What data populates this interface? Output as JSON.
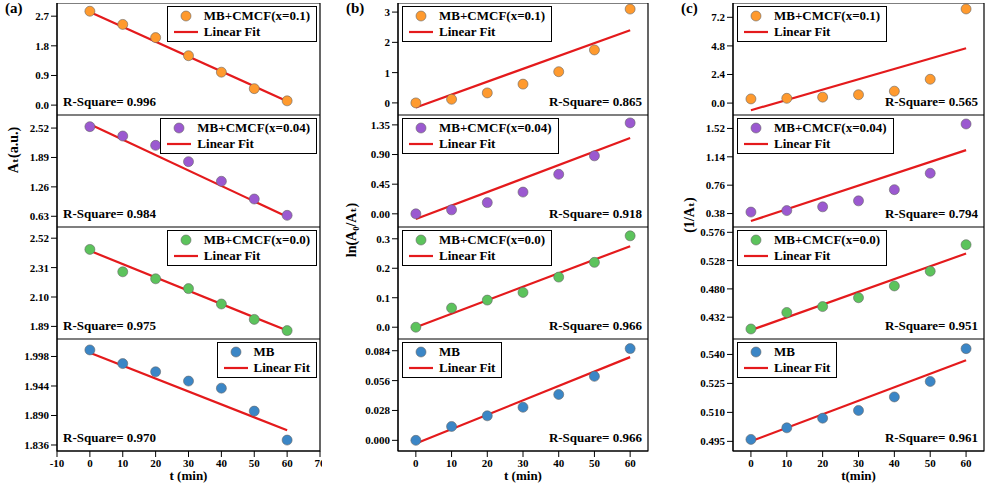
{
  "chart_data": [
    {
      "type": "scatter",
      "title": "(a)",
      "tick_labels": "y",
      "legend": "upper right",
      "xlim": [
        -10,
        70
      ],
      "ylim": [
        -0.3,
        3.1
      ],
      "yticks": [
        {
          "value": 0,
          "label": "0.0"
        },
        0.9,
        1.8,
        2.7
      ],
      "annotations": [
        "R-Square= 0.996"
      ],
      "series": [
        {
          "name": "MB+CMCF(x=0.1)",
          "type": "scatter",
          "marker": "circle",
          "color": "#ff9a2e",
          "x": [
            0,
            10,
            20,
            30,
            40,
            50,
            60
          ],
          "values": [
            2.85,
            2.45,
            2.05,
            1.5,
            1.0,
            0.5,
            0.13
          ]
        },
        {
          "name": "Linear Fit",
          "type": "line",
          "color": "#e41a1c",
          "x": [
            0,
            60
          ],
          "values": [
            2.83,
            0.12
          ]
        }
      ]
    },
    {
      "type": "scatter",
      "y_label": "Aₜ(a.u.)",
      "tick_labels": "y",
      "legend": "upper right",
      "xlim": [
        -10,
        70
      ],
      "ylim": [
        0.4,
        2.8
      ],
      "yticks": [
        0.63,
        1.26,
        1.89,
        2.52
      ],
      "annotations": [
        "R-Square= 0.984"
      ],
      "series": [
        {
          "name": "MB+CMCF(x=0.04)",
          "type": "scatter",
          "marker": "circle",
          "color": "#9b59d0",
          "x": [
            0,
            10,
            20,
            30,
            40,
            50,
            60
          ],
          "values": [
            2.55,
            2.35,
            2.15,
            1.8,
            1.38,
            1.0,
            0.65
          ]
        },
        {
          "name": "Linear Fit",
          "type": "line",
          "color": "#e41a1c",
          "x": [
            0,
            60
          ],
          "values": [
            2.6,
            0.62
          ]
        }
      ]
    },
    {
      "type": "scatter",
      "tick_labels": "y",
      "legend": "upper right",
      "xlim": [
        -10,
        70
      ],
      "ylim": [
        1.8,
        2.6
      ],
      "yticks": [
        1.89,
        {
          "value": 2.1,
          "label": "2.10"
        },
        2.31,
        2.52
      ],
      "annotations": [
        "R-Square= 0.975"
      ],
      "series": [
        {
          "name": "MB+CMCF(x=0.0)",
          "type": "scatter",
          "marker": "circle",
          "color": "#5cc35c",
          "x": [
            0,
            10,
            20,
            30,
            40,
            50,
            60
          ],
          "values": [
            2.44,
            2.28,
            2.23,
            2.16,
            2.05,
            1.94,
            1.86
          ]
        },
        {
          "name": "Linear Fit",
          "type": "line",
          "color": "#e41a1c",
          "x": [
            0,
            60
          ],
          "values": [
            2.43,
            1.86
          ]
        }
      ]
    },
    {
      "type": "scatter",
      "x_label": "t (min)",
      "legend": "upper right",
      "xlim": [
        -10,
        70
      ],
      "xticks": [
        -10,
        0,
        10,
        20,
        30,
        40,
        50,
        60,
        70
      ],
      "ylim": [
        1.825,
        2.03
      ],
      "yticks": [
        1.836,
        {
          "value": 1.89,
          "label": "1.890"
        },
        1.944,
        1.998
      ],
      "annotations": [
        "R-Square= 0.970"
      ],
      "series": [
        {
          "name": "MB",
          "type": "scatter",
          "marker": "circle",
          "color": "#3b86c6",
          "x": [
            0,
            10,
            20,
            30,
            40,
            50,
            60
          ],
          "values": [
            2.01,
            1.985,
            1.97,
            1.953,
            1.94,
            1.898,
            1.845
          ]
        },
        {
          "name": "Linear Fit",
          "type": "line",
          "color": "#e41a1c",
          "x": [
            0,
            60
          ],
          "values": [
            2.005,
            1.863
          ]
        }
      ]
    },
    {
      "type": "scatter",
      "title": "(b)",
      "tick_labels": "y",
      "legend": "upper left",
      "xlim": [
        -5,
        65
      ],
      "ylim": [
        -0.4,
        3.3
      ],
      "yticks": [
        0,
        1,
        2,
        3
      ],
      "annotations": [
        "R-Square= 0.865"
      ],
      "series": [
        {
          "name": "MB+CMCF(x=0.1)",
          "type": "scatter",
          "marker": "circle",
          "color": "#ff9a2e",
          "x": [
            0,
            10,
            20,
            30,
            40,
            50,
            60
          ],
          "values": [
            0,
            0.12,
            0.33,
            0.62,
            1.03,
            1.75,
            3.1
          ]
        },
        {
          "name": "Linear Fit",
          "type": "line",
          "color": "#e41a1c",
          "x": [
            0,
            60
          ],
          "values": [
            -0.15,
            2.4
          ]
        }
      ]
    },
    {
      "type": "scatter",
      "y_label": "ln(A₀/Aₜ)",
      "tick_labels": "y",
      "legend": "upper left",
      "xlim": [
        -5,
        65
      ],
      "ylim": [
        -0.2,
        1.5
      ],
      "yticks": [
        {
          "value": 0,
          "label": "0.00"
        },
        0.45,
        {
          "value": 0.9,
          "label": "0.90"
        },
        1.35
      ],
      "annotations": [
        "R-Square= 0.918"
      ],
      "series": [
        {
          "name": "MB+CMCF(x=0.04)",
          "type": "scatter",
          "marker": "circle",
          "color": "#9b59d0",
          "x": [
            0,
            10,
            20,
            30,
            40,
            50,
            60
          ],
          "values": [
            0,
            0.06,
            0.17,
            0.33,
            0.6,
            0.88,
            1.38
          ]
        },
        {
          "name": "Linear Fit",
          "type": "line",
          "color": "#e41a1c",
          "x": [
            0,
            60
          ],
          "values": [
            -0.08,
            1.15
          ]
        }
      ]
    },
    {
      "type": "scatter",
      "tick_labels": "y",
      "legend": "upper left",
      "xlim": [
        -5,
        65
      ],
      "ylim": [
        -0.04,
        0.34
      ],
      "yticks": [
        {
          "value": 0,
          "label": "0.0"
        },
        0.1,
        0.2,
        0.3
      ],
      "annotations": [
        "R-Square= 0.966"
      ],
      "series": [
        {
          "name": "MB+CMCF(x=0.0)",
          "type": "scatter",
          "marker": "circle",
          "color": "#5cc35c",
          "x": [
            0,
            10,
            20,
            30,
            40,
            50,
            60
          ],
          "values": [
            0,
            0.065,
            0.092,
            0.118,
            0.17,
            0.22,
            0.31
          ]
        },
        {
          "name": "Linear Fit",
          "type": "line",
          "color": "#e41a1c",
          "x": [
            0,
            60
          ],
          "values": [
            0.0,
            0.275
          ]
        }
      ]
    },
    {
      "type": "scatter",
      "x_label": "t (min)",
      "legend": "upper left",
      "xlim": [
        -5,
        65
      ],
      "xticks": [
        0,
        10,
        20,
        30,
        40,
        50,
        60
      ],
      "ylim": [
        -0.01,
        0.095
      ],
      "yticks": [
        {
          "value": 0,
          "label": "0.000"
        },
        0.028,
        0.056,
        0.084
      ],
      "annotations": [
        "R-Square= 0.966"
      ],
      "series": [
        {
          "name": "MB",
          "type": "scatter",
          "marker": "circle",
          "color": "#3b86c6",
          "x": [
            0,
            10,
            20,
            30,
            40,
            50,
            60
          ],
          "values": [
            0,
            0.013,
            0.023,
            0.031,
            0.043,
            0.06,
            0.086
          ]
        },
        {
          "name": "Linear Fit",
          "type": "line",
          "color": "#e41a1c",
          "x": [
            0,
            60
          ],
          "values": [
            -0.003,
            0.078
          ]
        }
      ]
    },
    {
      "type": "scatter",
      "title": "(c)",
      "tick_labels": "y",
      "legend": "upper left",
      "xlim": [
        -5,
        65
      ],
      "ylim": [
        -1,
        8.4
      ],
      "yticks": [
        {
          "value": 0,
          "label": "0.0"
        },
        2.4,
        4.8,
        7.2
      ],
      "annotations": [
        "R-Square= 0.565"
      ],
      "series": [
        {
          "name": "MB+CMCF(x=0.1)",
          "type": "scatter",
          "marker": "circle",
          "color": "#ff9a2e",
          "x": [
            0,
            10,
            20,
            30,
            40,
            50,
            60
          ],
          "values": [
            0.35,
            0.4,
            0.5,
            0.7,
            1.0,
            2.0,
            7.9
          ]
        },
        {
          "name": "Linear Fit",
          "type": "line",
          "color": "#e41a1c",
          "x": [
            0,
            60
          ],
          "values": [
            -0.6,
            4.6
          ]
        }
      ]
    },
    {
      "type": "scatter",
      "y_label": "(1/Aₜ)",
      "tick_labels": "y",
      "legend": "upper left",
      "xlim": [
        -5,
        65
      ],
      "ylim": [
        0.2,
        1.7
      ],
      "yticks": [
        0.38,
        0.76,
        1.14,
        1.52
      ],
      "annotations": [
        "R-Square= 0.794"
      ],
      "series": [
        {
          "name": "MB+CMCF(x=0.04)",
          "type": "scatter",
          "marker": "circle",
          "color": "#9b59d0",
          "x": [
            0,
            10,
            20,
            30,
            40,
            50,
            60
          ],
          "values": [
            0.4,
            0.42,
            0.47,
            0.55,
            0.7,
            0.92,
            1.58
          ]
        },
        {
          "name": "Linear Fit",
          "type": "line",
          "color": "#e41a1c",
          "x": [
            0,
            60
          ],
          "values": [
            0.28,
            1.23
          ]
        }
      ]
    },
    {
      "type": "scatter",
      "tick_labels": "y",
      "legend": "upper left",
      "xlim": [
        -5,
        65
      ],
      "ylim": [
        0.395,
        0.585
      ],
      "yticks": [
        0.432,
        {
          "value": 0.48,
          "label": "0.480"
        },
        0.528,
        0.576
      ],
      "annotations": [
        "R-Square= 0.951"
      ],
      "series": [
        {
          "name": "MB+CMCF(x=0.0)",
          "type": "scatter",
          "marker": "circle",
          "color": "#5cc35c",
          "x": [
            0,
            10,
            20,
            30,
            40,
            50,
            60
          ],
          "values": [
            0.412,
            0.44,
            0.45,
            0.465,
            0.485,
            0.51,
            0.555
          ]
        },
        {
          "name": "Linear Fit",
          "type": "line",
          "color": "#e41a1c",
          "x": [
            0,
            60
          ],
          "values": [
            0.41,
            0.54
          ]
        }
      ]
    },
    {
      "type": "scatter",
      "x_label": "t(min)",
      "legend": "upper left",
      "xlim": [
        -5,
        65
      ],
      "xticks": [
        0,
        10,
        20,
        30,
        40,
        50,
        60
      ],
      "ylim": [
        0.49,
        0.548
      ],
      "yticks": [
        0.495,
        {
          "value": 0.51,
          "label": "0.510"
        },
        0.525,
        {
          "value": 0.54,
          "label": "0.540"
        }
      ],
      "annotations": [
        "R-Square= 0.961"
      ],
      "series": [
        {
          "name": "MB",
          "type": "scatter",
          "marker": "circle",
          "color": "#3b86c6",
          "x": [
            0,
            10,
            20,
            30,
            40,
            50,
            60
          ],
          "values": [
            0.496,
            0.502,
            0.507,
            0.511,
            0.518,
            0.526,
            0.543
          ]
        },
        {
          "name": "Linear Fit",
          "type": "line",
          "color": "#e41a1c",
          "x": [
            0,
            60
          ],
          "values": [
            0.495,
            0.537
          ]
        }
      ]
    }
  ]
}
